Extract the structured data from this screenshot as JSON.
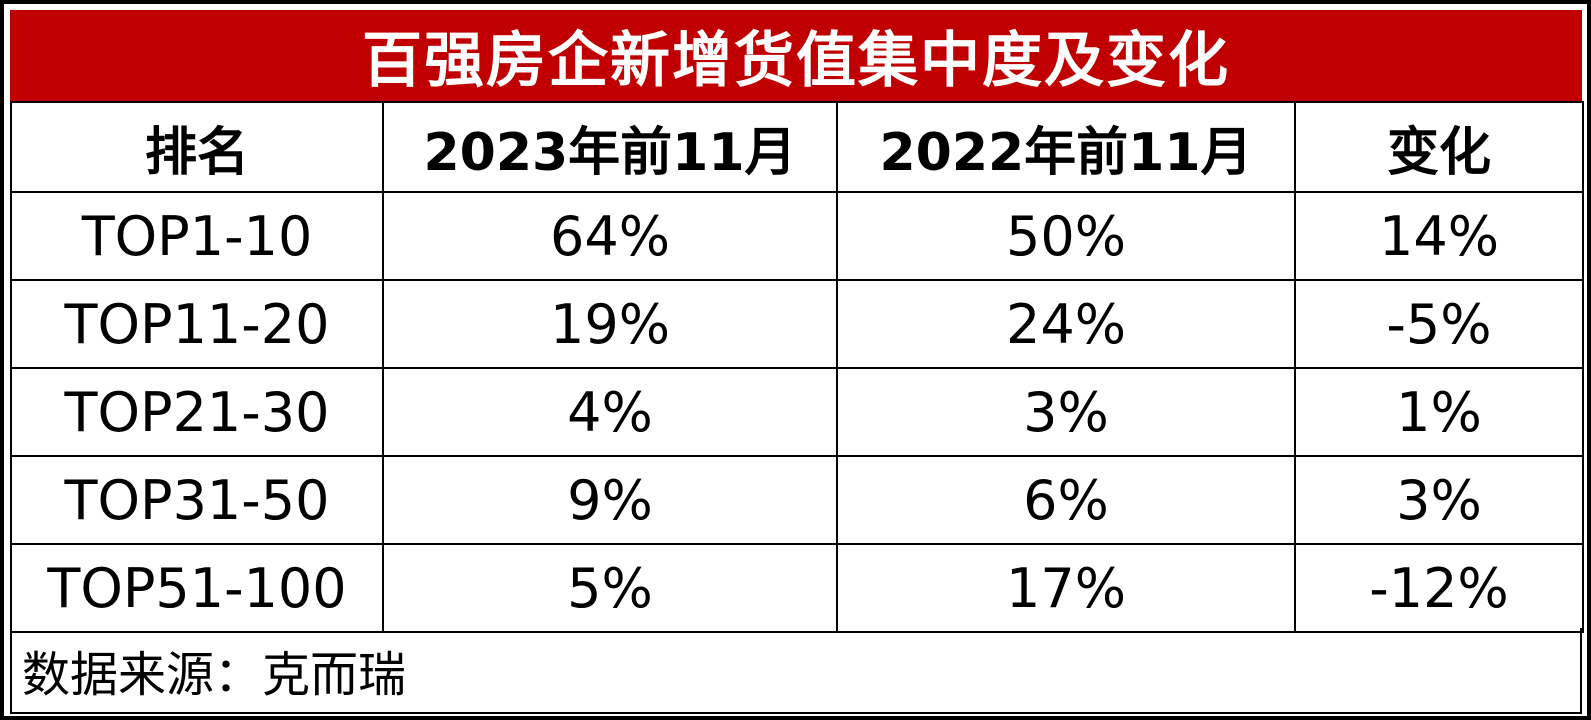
{
  "title": "百强房企新增货值集中度及变化",
  "colors": {
    "title_background": "#c00000",
    "title_text": "#ffffff",
    "grid_line": "#000000"
  },
  "table": {
    "headers": [
      "排名",
      "2023年前11月",
      "2022年前11月",
      "变化"
    ],
    "rows": [
      [
        "TOP1-10",
        "64%",
        "50%",
        "14%"
      ],
      [
        "TOP11-20",
        "19%",
        "24%",
        "-5%"
      ],
      [
        "TOP21-30",
        "4%",
        "3%",
        "1%"
      ],
      [
        "TOP31-50",
        "9%",
        "6%",
        "3%"
      ],
      [
        "TOP51-100",
        "5%",
        "17%",
        "-12%"
      ]
    ]
  },
  "source": "数据来源：克而瑞"
}
